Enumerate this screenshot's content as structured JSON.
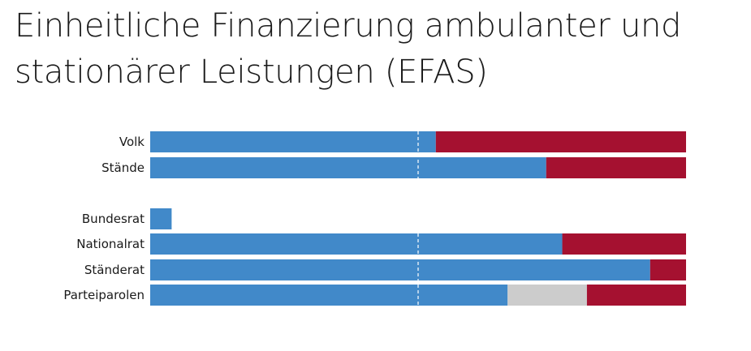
{
  "chart_data": {
    "type": "bar",
    "orientation": "horizontal",
    "stacked": true,
    "normalized": true,
    "title": "Einheitliche Finanzierung ambulanter und stationärer Leistungen (EFAS)",
    "xlim": [
      0,
      100
    ],
    "categories": [
      "Volk",
      "Stände",
      "Bundesrat",
      "Nationalrat",
      "Ständerat",
      "Parteiparolen"
    ],
    "groups": [
      [
        0,
        1
      ],
      [
        2,
        3,
        4,
        5
      ]
    ],
    "reference_line": 50,
    "grid": false,
    "legend": "none",
    "series": [
      {
        "color": "#4189c9",
        "values": [
          53.3,
          73.9,
          4,
          76.9,
          93.3,
          66.7
        ]
      },
      {
        "color": "#cccccc",
        "values": [
          0,
          0,
          0,
          0,
          0,
          14.8
        ]
      },
      {
        "color": "#a51130",
        "values": [
          46.7,
          26.1,
          0,
          23.1,
          6.7,
          18.5
        ]
      }
    ]
  }
}
